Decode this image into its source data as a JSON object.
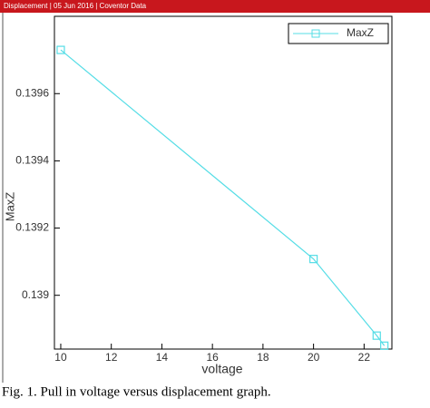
{
  "header": "Displacement | 05 Jun 2016 | Coventor Data",
  "caption": "Fig. 1. Pull in voltage versus displacement graph.",
  "chart_data": {
    "type": "line",
    "xlabel": "voltage",
    "ylabel": "MaxZ",
    "x": [
      10,
      20,
      22.5,
      22.8
    ],
    "series": [
      {
        "name": "MaxZ",
        "color": "#55dde6",
        "values": [
          0.13973,
          0.139108,
          0.13888,
          0.13885
        ]
      }
    ],
    "xlim": [
      9.75,
      23.1
    ],
    "ylim": [
      0.13884,
      0.13983
    ],
    "xticks": [
      10,
      12,
      14,
      16,
      18,
      20,
      22
    ],
    "yticks": [
      0.139,
      0.1392,
      0.1394,
      0.1396
    ],
    "legend": "top-right",
    "grid": false
  }
}
